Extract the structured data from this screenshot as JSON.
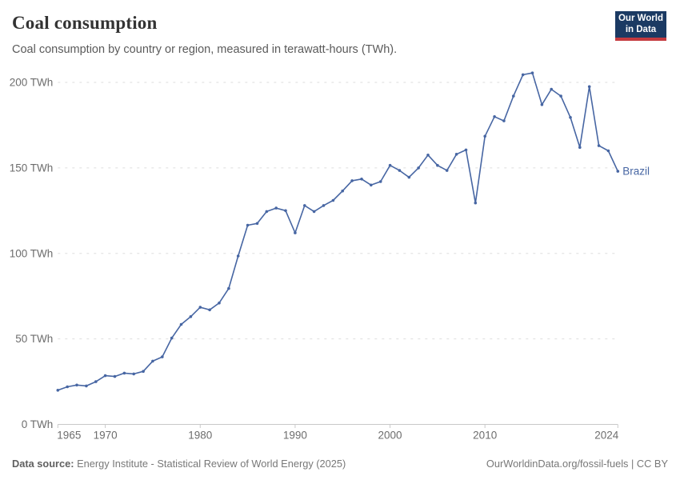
{
  "header": {
    "title": "Coal consumption",
    "subtitle": "Coal consumption by country or region, measured in terawatt-hours (TWh)."
  },
  "logo": {
    "line1": "Our World",
    "line2": "in Data",
    "bg_color": "#1b3a63",
    "accent_color": "#c43a3f"
  },
  "chart_data": {
    "type": "line",
    "title": "Coal consumption",
    "unit": "TWh",
    "xlim": [
      1965,
      2024
    ],
    "ylim": [
      0,
      200
    ],
    "grid": "horizontal-dashed",
    "legend_position": "end-of-line-label",
    "x_ticks": [
      {
        "value": 1965,
        "label": "1965"
      },
      {
        "value": 1970,
        "label": "1970"
      },
      {
        "value": 1980,
        "label": "1980"
      },
      {
        "value": 1990,
        "label": "1990"
      },
      {
        "value": 2000,
        "label": "2000"
      },
      {
        "value": 2010,
        "label": "2010"
      },
      {
        "value": 2024,
        "label": "2024"
      }
    ],
    "y_ticks": [
      {
        "value": 0,
        "label": "0 TWh"
      },
      {
        "value": 50,
        "label": "50 TWh"
      },
      {
        "value": 100,
        "label": "100 TWh"
      },
      {
        "value": 150,
        "label": "150 TWh"
      },
      {
        "value": 200,
        "label": "200 TWh"
      }
    ],
    "series": [
      {
        "name": "Brazil",
        "color": "#4766a3",
        "x": [
          1965,
          1966,
          1967,
          1968,
          1969,
          1970,
          1971,
          1972,
          1973,
          1974,
          1975,
          1976,
          1977,
          1978,
          1979,
          1980,
          1981,
          1982,
          1983,
          1984,
          1985,
          1986,
          1987,
          1988,
          1989,
          1990,
          1991,
          1992,
          1993,
          1994,
          1995,
          1996,
          1997,
          1998,
          1999,
          2000,
          2001,
          2002,
          2003,
          2004,
          2005,
          2006,
          2007,
          2008,
          2009,
          2010,
          2011,
          2012,
          2013,
          2014,
          2015,
          2016,
          2017,
          2018,
          2019,
          2020,
          2021,
          2022,
          2023,
          2024
        ],
        "values": [
          20,
          22,
          23,
          22.5,
          25,
          28.5,
          28,
          30,
          29.5,
          31,
          37,
          39.5,
          50.5,
          58.5,
          63,
          68.5,
          67,
          71,
          79.5,
          98.5,
          116.5,
          117.5,
          124.5,
          126.5,
          125,
          112,
          128,
          124.5,
          128,
          131,
          136.5,
          142.5,
          143.5,
          140,
          142,
          151.5,
          148.5,
          144.5,
          150,
          157.5,
          151.5,
          148.5,
          158,
          160.5,
          129.5,
          168.5,
          180,
          177.5,
          192,
          204.5,
          205.5,
          187,
          196,
          192,
          179.5,
          162,
          197.5,
          163,
          160,
          148
        ]
      }
    ],
    "end_label": "Brazil"
  },
  "footer": {
    "source_prefix": "Data source:",
    "source_text": " Energy Institute - Statistical Review of World Energy (2025)",
    "link_text": "OurWorldinData.org/fossil-fuels | CC BY"
  }
}
